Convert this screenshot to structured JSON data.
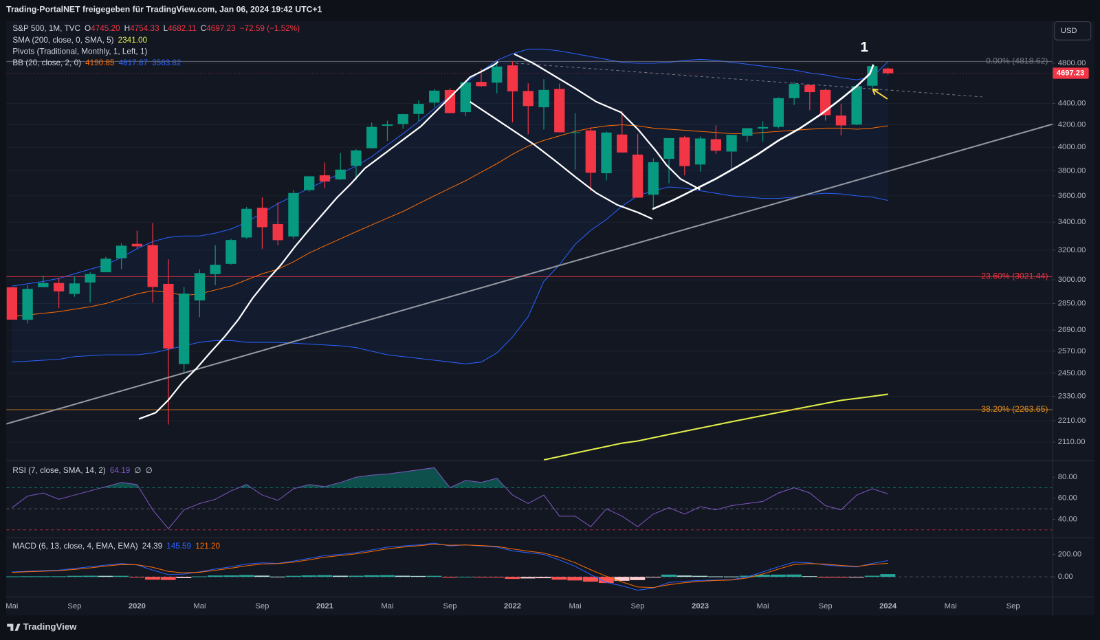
{
  "header": {
    "share": "Trading-PortalNET freigegeben für TradingView.com, Jan 06, 2024 19:42 UTC+1",
    "currency": "USD"
  },
  "legend": {
    "symbol": "S&P 500, 1M, TVC",
    "o_label": "O",
    "open": "4745.20",
    "h_label": "H",
    "high": "4754.33",
    "l_label": "L",
    "low": "4682.11",
    "c_label": "C",
    "close": "4697.23",
    "change": "−72.59 (−1.52%)",
    "sma": "SMA (200, close, 0, SMA, 5)",
    "sma_value": "2341.00",
    "pivots": "Pivots (Traditional, Monthly, 1, Left, 1)",
    "bb": "BB (20, close, 2, 0)",
    "bb_basis": "4190.85",
    "bb_upper": "4817.87",
    "bb_lower": "3563.82",
    "rsi": "RSI (7, close, SMA, 14, 2)",
    "rsi_value": "64.19",
    "rsi_na1": "∅",
    "rsi_na2": "∅",
    "macd": "MACD (6, 13, close, 4, EMA, EMA)",
    "macd_hist": "24.39",
    "macd_value": "145.59",
    "macd_signal": "121.20"
  },
  "annotation": "1",
  "footer": "TradingView",
  "chart_data": [
    {
      "type": "candlestick",
      "log_scale": true,
      "grid": true,
      "categories": [
        "Mai",
        null,
        null,
        null,
        "Sep",
        null,
        null,
        null,
        "2020",
        null,
        null,
        null,
        "Mai",
        null,
        null,
        null,
        "Sep",
        null,
        null,
        null,
        "2021",
        null,
        null,
        null,
        "Mai",
        null,
        null,
        null,
        "Sep",
        null,
        null,
        null,
        "2022",
        null,
        null,
        null,
        "Mai",
        null,
        null,
        null,
        "Sep",
        null,
        null,
        null,
        "2023",
        null,
        null,
        null,
        "Mai",
        null,
        null,
        null,
        "Sep",
        null,
        null,
        null,
        "2024",
        null,
        null,
        null,
        "Mai",
        null,
        null,
        null,
        "Sep",
        null,
        null
      ],
      "open": [
        2952,
        2751,
        2953,
        2980,
        2910,
        2983,
        3050,
        3144,
        3244,
        3235,
        2974,
        2499,
        2869,
        3038,
        3106,
        3289,
        3508,
        3386,
        3296,
        3645,
        3764,
        3731,
        3842,
        3992,
        4191,
        4207,
        4300,
        4407,
        4529,
        4317,
        4610,
        4602,
        4778,
        4519,
        4363,
        4540,
        4130,
        4149,
        3781,
        4112,
        3937,
        3609,
        3901,
        4087,
        3853,
        4071,
        3963,
        4100,
        4166,
        4181,
        4450,
        4578,
        4530,
        4285,
        4202,
        4571,
        4745.2,
        null,
        null,
        null,
        null,
        null,
        null,
        null,
        null,
        null,
        null
      ],
      "high": [
        2954,
        2965,
        3028,
        3014,
        3022,
        3050,
        3154,
        3248,
        3338,
        3394,
        3137,
        2955,
        3068,
        3233,
        3280,
        3515,
        3588,
        3550,
        3646,
        3760,
        3870,
        3951,
        3983,
        4219,
        4238,
        4302,
        4429,
        4538,
        4546,
        4608,
        4744,
        4808,
        4819,
        4595,
        4637,
        4593,
        4307,
        4178,
        4140,
        4325,
        4119,
        3905,
        4080,
        4101,
        4095,
        4195,
        4110,
        4170,
        4231,
        4458,
        4607,
        4584,
        4541,
        4393,
        4587,
        4793,
        4754.33,
        null,
        null,
        null,
        null,
        null,
        null,
        null,
        null,
        null,
        null
      ],
      "low": [
        2750,
        2729,
        2952,
        2822,
        2892,
        2856,
        3050,
        3070,
        3214,
        2855,
        2192,
        2447,
        2767,
        2966,
        3101,
        3280,
        3210,
        3234,
        3280,
        3633,
        3663,
        3725,
        3723,
        3987,
        4056,
        4164,
        4233,
        4367,
        4306,
        4279,
        4560,
        4495,
        4222,
        4115,
        4157,
        4132,
        3811,
        3637,
        3722,
        3955,
        3585,
        3492,
        3699,
        3764,
        3794,
        3943,
        3809,
        4049,
        4048,
        4167,
        4385,
        4335,
        4238,
        4104,
        4197,
        4546,
        4682.11,
        null,
        null,
        null,
        null,
        null,
        null,
        null,
        null,
        null,
        null
      ],
      "close": [
        2752,
        2942,
        2980,
        2926,
        2977,
        3038,
        3141,
        3231,
        3226,
        2954,
        2585,
        2912,
        3044,
        3100,
        3271,
        3500,
        3363,
        3270,
        3622,
        3756,
        3714,
        3811,
        3973,
        4181,
        4204,
        4298,
        4395,
        4523,
        4308,
        4605,
        4567,
        4766,
        4516,
        4374,
        4530,
        4132,
        4132,
        3785,
        4130,
        3955,
        3586,
        3872,
        4080,
        3840,
        4077,
        3970,
        4109,
        4169,
        4180,
        4450,
        4589,
        4508,
        4288,
        4194,
        4568,
        4770,
        4697.23,
        null,
        null,
        null,
        null,
        null,
        null,
        null,
        null,
        null,
        null
      ],
      "up_color": "#089981",
      "down_color": "#f23645",
      "bb": {
        "upper": [
          2960,
          2975,
          2990,
          3010,
          3040,
          3070,
          3100,
          3150,
          3210,
          3260,
          3290,
          3300,
          3300,
          3320,
          3350,
          3400,
          3470,
          3540,
          3600,
          3660,
          3720,
          3780,
          3840,
          3920,
          4020,
          4120,
          4230,
          4350,
          4470,
          4600,
          4720,
          4830,
          4900,
          4950,
          4950,
          4930,
          4900,
          4870,
          4840,
          4810,
          4800,
          4800,
          4810,
          4830,
          4840,
          4830,
          4810,
          4790,
          4770,
          4750,
          4730,
          4700,
          4680,
          4650,
          4630,
          4660,
          4817.87,
          null,
          null,
          null,
          null,
          null,
          null,
          null,
          null,
          null,
          null
        ],
        "basis": [
          2770,
          2780,
          2790,
          2800,
          2815,
          2830,
          2850,
          2880,
          2910,
          2930,
          2920,
          2900,
          2910,
          2935,
          2960,
          3000,
          3040,
          3070,
          3120,
          3180,
          3230,
          3280,
          3330,
          3380,
          3430,
          3480,
          3540,
          3600,
          3660,
          3720,
          3790,
          3860,
          3940,
          4010,
          4060,
          4100,
          4140,
          4170,
          4190,
          4200,
          4190,
          4170,
          4160,
          4150,
          4140,
          4130,
          4120,
          4120,
          4130,
          4140,
          4150,
          4160,
          4170,
          4170,
          4160,
          4170,
          4190.85,
          null,
          null,
          null,
          null,
          null,
          null,
          null,
          null,
          null,
          null
        ],
        "lower": [
          2510,
          2515,
          2520,
          2525,
          2540,
          2545,
          2550,
          2550,
          2550,
          2560,
          2580,
          2600,
          2620,
          2630,
          2630,
          2620,
          2620,
          2620,
          2615,
          2610,
          2605,
          2600,
          2590,
          2570,
          2550,
          2540,
          2530,
          2520,
          2510,
          2500,
          2510,
          2560,
          2650,
          2770,
          2990,
          3100,
          3240,
          3340,
          3420,
          3520,
          3600,
          3640,
          3670,
          3660,
          3640,
          3620,
          3600,
          3590,
          3580,
          3580,
          3590,
          3610,
          3620,
          3615,
          3600,
          3590,
          3563.82,
          null,
          null,
          null,
          null,
          null,
          null,
          null,
          null,
          null,
          null
        ],
        "upper_color": "#2962ff",
        "basis_color": "#ff6d00",
        "lower_color": "#2962ff",
        "fill": "#2962ff"
      },
      "sma": {
        "values": [
          null,
          null,
          null,
          null,
          null,
          null,
          null,
          null,
          null,
          null,
          null,
          null,
          null,
          null,
          null,
          null,
          null,
          null,
          null,
          null,
          null,
          null,
          null,
          null,
          null,
          null,
          null,
          null,
          null,
          null,
          null,
          null,
          null,
          null,
          2030,
          2045,
          2060,
          2075,
          2090,
          2105,
          2115,
          2130,
          2145,
          2160,
          2175,
          2190,
          2205,
          2220,
          2235,
          2250,
          2265,
          2280,
          2295,
          2310,
          2320,
          2330,
          2341.0,
          null,
          null,
          null,
          null,
          null,
          null,
          null,
          null,
          null,
          null
        ],
        "color": "#e2f04a"
      },
      "ylim": [
        2028,
        5260
      ],
      "yticks": [
        {
          "value": 2110,
          "label": "2110.00"
        },
        {
          "value": 2210,
          "label": "2210.00"
        },
        {
          "value": 2330,
          "label": "2330.00"
        },
        {
          "value": 2450,
          "label": "2450.00"
        },
        {
          "value": 2570,
          "label": "2570.00"
        },
        {
          "value": 2690,
          "label": "2690.00"
        },
        {
          "value": 2850,
          "label": "2850.00"
        },
        {
          "value": 3000,
          "label": "3000.00"
        },
        {
          "value": 3200,
          "label": "3200.00"
        },
        {
          "value": 3400,
          "label": "3400.00"
        },
        {
          "value": 3600,
          "label": "3600.00"
        },
        {
          "value": 3800,
          "label": "3800.00"
        },
        {
          "value": 4000,
          "label": "4000.00"
        },
        {
          "value": 4200,
          "label": "4200.00"
        },
        {
          "value": 4400,
          "label": "4400.00"
        },
        {
          "value": 4800,
          "label": "4800.00"
        }
      ],
      "fib_levels": [
        {
          "value": 4818.62,
          "label": "0.00% (4818.62)",
          "color": "#787b86"
        },
        {
          "value": 3021.44,
          "label": "23.60% (3021.44)",
          "color": "#f23645"
        },
        {
          "value": 2263.65,
          "label": "38.20% (2263.65)",
          "color": "#e08a1e"
        }
      ],
      "last_price_label": "4697.23",
      "last_price_color": "#f23645"
    },
    {
      "type": "line",
      "color": "#7e57c2",
      "fill": "#089981",
      "values": [
        51,
        62,
        65,
        59,
        63,
        67,
        71,
        75,
        73,
        49,
        31,
        49,
        55,
        59,
        67,
        73,
        63,
        58,
        69,
        73,
        71,
        75,
        80,
        82,
        83,
        85,
        87,
        89,
        70,
        77,
        75,
        79,
        63,
        55,
        63,
        43,
        43,
        33,
        50,
        43,
        33,
        45,
        51,
        45,
        52,
        49,
        53,
        55,
        57,
        65,
        70,
        65,
        53,
        49,
        63,
        69,
        64.19,
        null,
        null,
        null,
        null,
        null,
        null,
        null,
        null,
        null,
        null
      ],
      "ylim": [
        22.7,
        95.3
      ],
      "yticks": [
        {
          "value": 80,
          "label": "80.00"
        },
        {
          "value": 60,
          "label": "60.00"
        },
        {
          "value": 40,
          "label": "40.00"
        }
      ],
      "levels": [
        {
          "value": 70,
          "color": "#089981"
        },
        {
          "value": 50,
          "color": "#787b86"
        },
        {
          "value": 30,
          "color": "#f23645"
        }
      ],
      "fill_above": 70
    },
    {
      "type": "macd",
      "macd_color": "#2962ff",
      "signal_color": "#ff6d00",
      "hist_colors": {
        "up_rising": "#26a69a",
        "up_falling": "#b2dfdb",
        "down_falling": "#ff5252",
        "down_rising": "#ffcdd2"
      },
      "macd": [
        44,
        50,
        55,
        60,
        75,
        90,
        105,
        119,
        106,
        60,
        20,
        25,
        45,
        70,
        90,
        115,
        125,
        120,
        140,
        165,
        190,
        200,
        215,
        240,
        265,
        275,
        285,
        300,
        275,
        285,
        275,
        265,
        231,
        215,
        200,
        150,
        94,
        20,
        -50,
        -80,
        -119,
        -100,
        -50,
        -40,
        -31,
        -28,
        -25,
        0,
        44,
        90,
        131,
        125,
        106,
        95,
        88,
        120,
        145.59,
        null,
        null,
        null,
        null,
        null,
        null,
        null,
        null,
        null,
        null
      ],
      "signal": [
        40,
        45,
        50,
        55,
        66,
        80,
        96,
        110,
        108,
        85,
        48,
        36,
        41,
        58,
        77,
        99,
        114,
        118,
        131,
        152,
        175,
        190,
        205,
        226,
        250,
        265,
        277,
        291,
        282,
        284,
        279,
        271,
        249,
        229,
        212,
        175,
        126,
        63,
        5,
        -45,
        -90,
        -95,
        -70,
        -52,
        -40,
        -32,
        -28,
        -10,
        25,
        70,
        110,
        119,
        113,
        102,
        93,
        110,
        121.2,
        null,
        null,
        null,
        null,
        null,
        null,
        null,
        null,
        null,
        null
      ],
      "histogram": [
        4,
        5,
        5,
        5,
        9,
        10,
        9,
        9,
        -2,
        -25,
        -28,
        -11,
        4,
        12,
        13,
        16,
        11,
        2,
        9,
        13,
        15,
        10,
        10,
        14,
        15,
        10,
        8,
        9,
        -7,
        1,
        -4,
        -6,
        -18,
        -14,
        -12,
        -25,
        -32,
        -43,
        -55,
        -35,
        -29,
        -5,
        20,
        12,
        9,
        4,
        3,
        10,
        19,
        20,
        21,
        6,
        -7,
        -7,
        -5,
        10,
        24.39,
        null,
        null,
        null,
        null,
        null,
        null,
        null,
        null,
        null,
        null
      ],
      "ylim": [
        -175,
        344
      ],
      "yticks": [
        {
          "value": 200,
          "label": "200.00"
        },
        {
          "value": 0,
          "label": "0.00"
        }
      ]
    }
  ]
}
